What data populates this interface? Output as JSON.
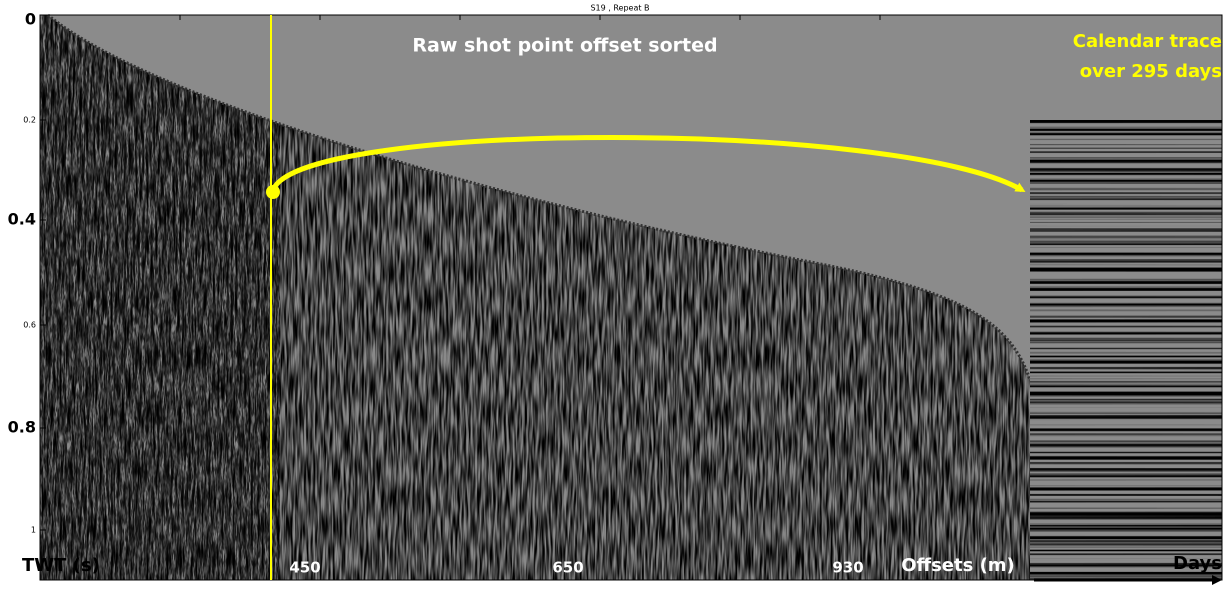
{
  "figure": {
    "title": "S19 , Repeat B",
    "annotation_main": "Raw shot point offset sorted",
    "annotation_calendar": [
      "Calendar trace",
      "over 295 days"
    ],
    "y_axis_label": "TWT (s)",
    "y_tick_labels": [
      "0",
      "0.2",
      "0.4",
      "0.6",
      "0.8",
      "1"
    ],
    "x_labels": [
      "450",
      "650",
      "930"
    ],
    "x_axis_label": "Offsets (m)",
    "days_label": "Days"
  }
}
